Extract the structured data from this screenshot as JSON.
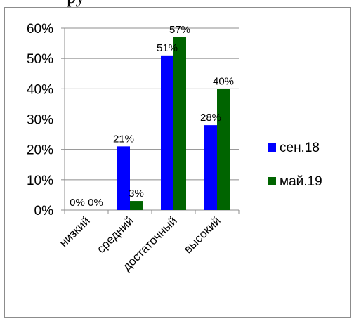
{
  "header_fragment": "ру",
  "chart_data": {
    "type": "bar",
    "categories": [
      "низкий",
      "средний",
      "достаточный",
      "высокий"
    ],
    "series": [
      {
        "name": "сен.18",
        "color": "#0000ff",
        "values": [
          0,
          21,
          51,
          28
        ],
        "labels": [
          "0%",
          "21%",
          "51%",
          "28%"
        ]
      },
      {
        "name": "май.19",
        "color": "#006400",
        "values": [
          0,
          3,
          57,
          40
        ],
        "labels": [
          "0%",
          "3%",
          "57%",
          "40%"
        ]
      }
    ],
    "ylim": [
      0,
      60
    ],
    "yticks": [
      "0%",
      "10%",
      "20%",
      "30%",
      "40%",
      "50%",
      "60%"
    ],
    "grid": true,
    "legend": "right"
  }
}
